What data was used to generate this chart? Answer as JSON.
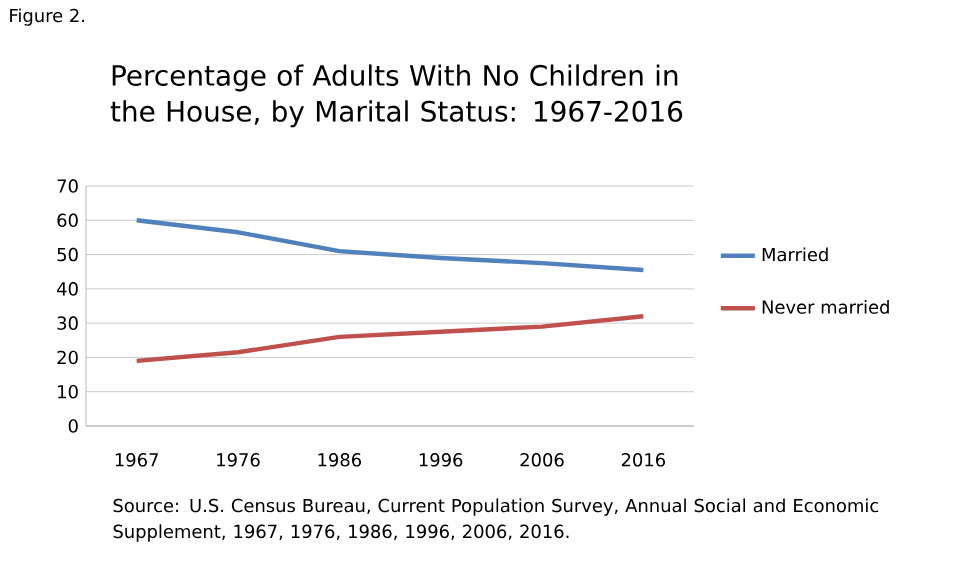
{
  "chart_data": {
    "type": "line",
    "title": "Percentage of Adults With No Children in the House, by Marital Status: 1967-2016",
    "categories": [
      "1967",
      "1976",
      "1986",
      "1996",
      "2006",
      "2016"
    ],
    "series": [
      {
        "name": "Married",
        "color": "#4f81bd",
        "values": [
          60,
          56.5,
          51,
          49,
          47.5,
          45.5
        ]
      },
      {
        "name": "Never married",
        "color": "#c0504d",
        "values": [
          19,
          21.5,
          26,
          27.5,
          29,
          32
        ]
      }
    ],
    "ylim": [
      0,
      70
    ],
    "yticks": [
      0,
      10,
      20,
      30,
      40,
      50,
      60,
      70
    ],
    "grid": "y",
    "legend": "right",
    "marker": "none",
    "line_style": "solid",
    "annotations": [
      "Figure 2.",
      "Source: U.S. Census Bureau, Current Population Survey, Annual Social and Economic Supplement, 1967, 1976, 1986, 1996, 2006, 2016."
    ]
  }
}
